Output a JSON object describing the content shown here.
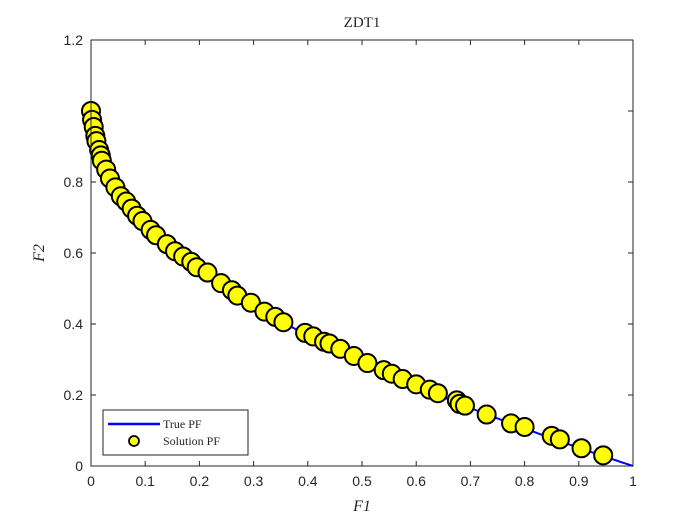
{
  "chart_data": {
    "type": "scatter",
    "title": "ZDT1",
    "xlabel": "F1",
    "ylabel": "F2",
    "xlim": [
      0,
      1
    ],
    "ylim": [
      0,
      1.2
    ],
    "xticks": [
      "0",
      "0.1",
      "0.2",
      "0.3",
      "0.4",
      "0.5",
      "0.6",
      "0.7",
      "0.8",
      "0.9",
      "1"
    ],
    "yticks": [
      "0",
      "0.2",
      "0.4",
      "0.6",
      "0.8",
      "1.2"
    ],
    "grid": false,
    "legend_position": "bottom-left",
    "colors": {
      "true_pf": "#0000ff",
      "solution_fill": "#ffff00",
      "solution_edge": "#000000",
      "axis": "#262626"
    },
    "series": [
      {
        "name": "True PF",
        "kind": "line",
        "function": "f2 = 1 - sqrt(f1)",
        "x_range": [
          0,
          1
        ]
      },
      {
        "name": "Solution PF",
        "kind": "scatter",
        "x": [
          0.0,
          0.002,
          0.005,
          0.008,
          0.01,
          0.015,
          0.018,
          0.02,
          0.028,
          0.035,
          0.045,
          0.055,
          0.065,
          0.075,
          0.085,
          0.095,
          0.11,
          0.12,
          0.14,
          0.155,
          0.17,
          0.185,
          0.195,
          0.215,
          0.24,
          0.26,
          0.27,
          0.295,
          0.32,
          0.34,
          0.355,
          0.395,
          0.41,
          0.43,
          0.44,
          0.46,
          0.485,
          0.51,
          0.54,
          0.555,
          0.575,
          0.6,
          0.625,
          0.64,
          0.675,
          0.68,
          0.69,
          0.73,
          0.775,
          0.8,
          0.85,
          0.865,
          0.905,
          0.945
        ],
        "y": [
          1.0,
          0.975,
          0.955,
          0.93,
          0.915,
          0.89,
          0.875,
          0.86,
          0.835,
          0.81,
          0.785,
          0.76,
          0.745,
          0.725,
          0.705,
          0.69,
          0.665,
          0.65,
          0.625,
          0.605,
          0.59,
          0.575,
          0.56,
          0.545,
          0.515,
          0.495,
          0.48,
          0.46,
          0.435,
          0.42,
          0.405,
          0.375,
          0.365,
          0.35,
          0.345,
          0.33,
          0.31,
          0.29,
          0.27,
          0.26,
          0.245,
          0.23,
          0.215,
          0.205,
          0.185,
          0.175,
          0.17,
          0.145,
          0.12,
          0.11,
          0.085,
          0.075,
          0.05,
          0.03
        ]
      }
    ]
  }
}
